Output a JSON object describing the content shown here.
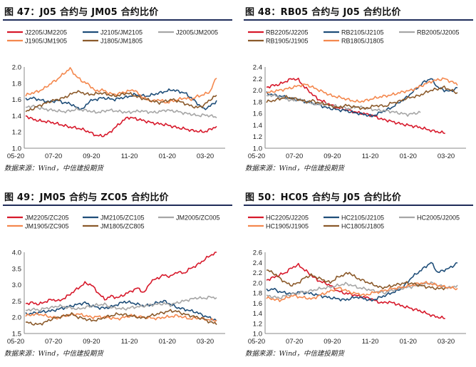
{
  "source_note": "数据来源：Wind，中信建投期货",
  "x_ticks": [
    "05-20",
    "07-20",
    "09-20",
    "11-20",
    "01-20",
    "03-20"
  ],
  "chart_data": [
    {
      "type": "line",
      "title": "图 47：J05 合约与 JM05 合约比价",
      "ylim": [
        1.0,
        2.0
      ],
      "yticks": [
        "1.0",
        "1.2",
        "1.4",
        "1.6",
        "1.8",
        "2.0"
      ],
      "series": [
        {
          "name": "J2205/JM2205",
          "color": "#d7192b",
          "values": [
            1.4,
            1.36,
            1.34,
            1.33,
            1.32,
            1.3,
            1.28,
            1.26,
            1.25,
            1.23,
            1.2,
            1.16,
            1.15,
            1.18,
            1.25,
            1.32,
            1.38,
            1.37,
            1.35,
            1.33,
            1.31,
            1.3,
            1.29,
            1.27,
            1.25,
            1.24,
            1.22,
            1.21,
            1.2,
            1.23,
            1.27
          ]
        },
        {
          "name": "J2105/JM2105",
          "color": "#1f4e79",
          "values": [
            1.6,
            1.62,
            1.6,
            1.58,
            1.57,
            1.59,
            1.56,
            1.55,
            1.5,
            1.48,
            1.58,
            1.6,
            1.62,
            1.61,
            1.6,
            1.62,
            1.63,
            1.66,
            1.65,
            1.64,
            1.66,
            1.68,
            1.7,
            1.72,
            1.7,
            1.68,
            1.62,
            1.55,
            1.48,
            1.52,
            1.58
          ]
        },
        {
          "name": "J2005/JM2005",
          "color": "#a6a6a6",
          "values": [
            1.5,
            1.52,
            1.5,
            1.48,
            1.47,
            1.46,
            1.45,
            1.46,
            1.48,
            1.47,
            1.46,
            1.44,
            1.45,
            1.47,
            1.46,
            1.45,
            1.44,
            1.45,
            1.46,
            1.45,
            1.44,
            1.45,
            1.47,
            1.46,
            1.45,
            1.43,
            1.42,
            1.4,
            1.41,
            1.4,
            1.38
          ]
        },
        {
          "name": "J1905/JM1905",
          "color": "#f4884e",
          "values": [
            1.65,
            1.68,
            1.7,
            1.74,
            1.8,
            1.85,
            1.92,
            1.98,
            1.88,
            1.82,
            1.78,
            1.7,
            1.72,
            1.68,
            1.66,
            1.68,
            1.7,
            1.72,
            1.65,
            1.6,
            1.58,
            1.6,
            1.56,
            1.58,
            1.6,
            1.62,
            1.6,
            1.64,
            1.66,
            1.7,
            1.88
          ]
        },
        {
          "name": "J1805/JM1805",
          "color": "#8b5a2b",
          "values": [
            1.45,
            1.48,
            1.52,
            1.55,
            1.58,
            1.6,
            1.62,
            1.66,
            1.7,
            1.68,
            1.66,
            1.67,
            1.68,
            1.66,
            1.64,
            1.66,
            1.68,
            1.65,
            1.62,
            1.6,
            1.58,
            1.56,
            1.58,
            1.6,
            1.58,
            1.55,
            1.52,
            1.5,
            1.53,
            1.6,
            1.65
          ]
        }
      ]
    },
    {
      "type": "line",
      "title": "图 48：RB05 合约与 J05 合约比价",
      "ylim": [
        1.0,
        2.4
      ],
      "yticks": [
        "1.0",
        "1.2",
        "1.4",
        "1.6",
        "1.8",
        "2.0",
        "2.2",
        "2.4"
      ],
      "series": [
        {
          "name": "RB2205/J2205",
          "color": "#d7192b",
          "values": [
            2.05,
            2.08,
            2.1,
            2.15,
            2.2,
            2.18,
            2.05,
            1.95,
            1.85,
            1.8,
            1.75,
            1.7,
            1.68,
            1.65,
            1.62,
            1.6,
            1.58,
            1.55,
            1.5,
            1.48,
            1.45,
            1.42,
            1.4,
            1.38,
            1.36,
            1.33,
            1.3,
            1.28,
            1.26
          ]
        },
        {
          "name": "RB2105/J2105",
          "color": "#1f4e79",
          "values": [
            1.95,
            1.92,
            1.9,
            1.88,
            1.85,
            1.83,
            1.8,
            1.78,
            1.75,
            1.7,
            1.68,
            1.66,
            1.65,
            1.62,
            1.6,
            1.58,
            1.55,
            1.6,
            1.65,
            1.7,
            1.78,
            1.85,
            1.95,
            2.05,
            2.15,
            2.2,
            2.05,
            2.0,
            1.98,
            2.05
          ]
        },
        {
          "name": "RB2005/J2005",
          "color": "#a6a6a6",
          "values": [
            1.9,
            1.92,
            1.88,
            1.85,
            1.82,
            1.84,
            1.8,
            1.78,
            1.75,
            1.76,
            1.74,
            1.72,
            1.7,
            1.68,
            1.72,
            1.7,
            1.68,
            1.66,
            1.65,
            1.64,
            1.62,
            1.6,
            1.58,
            1.6,
            1.62
          ]
        },
        {
          "name": "RB1905/J1905",
          "color": "#8b5a2b",
          "values": [
            1.8,
            1.82,
            1.85,
            1.88,
            1.86,
            1.84,
            1.8,
            1.82,
            1.78,
            1.76,
            1.72,
            1.7,
            1.74,
            1.72,
            1.7,
            1.68,
            1.72,
            1.74,
            1.72,
            1.78,
            1.8,
            1.85,
            1.88,
            1.9,
            1.95,
            2.0,
            2.02,
            2.05,
            2.0,
            1.95
          ]
        },
        {
          "name": "RB1805/J1805",
          "color": "#f4884e",
          "values": [
            1.95,
            1.98,
            2.0,
            2.02,
            2.05,
            2.08,
            2.1,
            2.05,
            2.0,
            1.95,
            1.9,
            1.88,
            1.85,
            1.82,
            1.8,
            1.82,
            1.85,
            1.88,
            1.9,
            1.92,
            1.95,
            1.98,
            2.0,
            2.05,
            2.1,
            2.15,
            2.18,
            2.2,
            2.15,
            2.1
          ]
        }
      ]
    },
    {
      "type": "line",
      "title": "图 49：JM05 合约与 ZC05 合约比价",
      "ylim": [
        1.5,
        4.0
      ],
      "yticks": [
        "1.5",
        "2.0",
        "2.5",
        "3.0",
        "3.5",
        "4.0"
      ],
      "series": [
        {
          "name": "JM2205/ZC205",
          "color": "#d7192b",
          "values": [
            2.42,
            2.45,
            2.4,
            2.48,
            2.55,
            2.5,
            2.6,
            2.75,
            2.9,
            3.05,
            3.0,
            2.75,
            2.55,
            2.65,
            2.6,
            2.7,
            2.8,
            2.9,
            2.75,
            3.1,
            3.2,
            3.3,
            3.25,
            3.4,
            3.35,
            3.5,
            3.6,
            3.75,
            3.9,
            4.0
          ]
        },
        {
          "name": "JM2105/ZC105",
          "color": "#1f4e79",
          "values": [
            2.1,
            2.12,
            2.15,
            2.18,
            2.2,
            2.25,
            2.3,
            2.35,
            2.4,
            2.45,
            2.35,
            2.3,
            2.28,
            2.32,
            2.4,
            2.48,
            2.45,
            2.4,
            2.35,
            2.38,
            2.45,
            2.5,
            2.4,
            2.3,
            2.25,
            2.2,
            2.15,
            2.05,
            1.98,
            1.9
          ]
        },
        {
          "name": "JM2005/ZC005",
          "color": "#a6a6a6",
          "values": [
            2.2,
            2.25,
            2.22,
            2.28,
            2.3,
            2.35,
            2.32,
            2.28,
            2.25,
            2.3,
            2.35,
            2.38,
            2.4,
            2.3,
            2.28,
            2.25,
            2.3,
            2.32,
            2.35,
            2.38,
            2.4,
            2.42,
            2.38,
            2.45,
            2.5,
            2.55,
            2.6,
            2.58,
            2.62,
            2.6
          ]
        },
        {
          "name": "JM1905/ZC905",
          "color": "#f4884e",
          "values": [
            2.05,
            2.08,
            2.1,
            2.05,
            2.0,
            1.98,
            2.05,
            2.08,
            2.1,
            2.05,
            2.0,
            2.02,
            2.0,
            1.98,
            1.95,
            2.0,
            2.05,
            2.02,
            2.0,
            1.98,
            1.96,
            2.0,
            2.02,
            2.05,
            2.0,
            1.95,
            1.98,
            1.95,
            1.92,
            1.9
          ]
        },
        {
          "name": "JM1805/ZC805",
          "color": "#8b5a2b",
          "values": [
            1.85,
            1.8,
            1.78,
            1.85,
            1.95,
            2.0,
            2.05,
            2.1,
            2.0,
            1.95,
            1.9,
            1.92,
            2.0,
            2.05,
            2.1,
            2.08,
            2.05,
            2.0,
            1.98,
            2.05,
            2.1,
            2.15,
            2.2,
            2.18,
            2.1,
            2.05,
            2.0,
            1.95,
            1.85,
            1.8
          ]
        }
      ]
    },
    {
      "type": "line",
      "title": "图 50：HC05 合约与 J05 合约比价",
      "ylim": [
        1.0,
        2.6
      ],
      "yticks": [
        "1.0",
        "1.2",
        "1.4",
        "1.6",
        "1.8",
        "2.0",
        "2.2",
        "2.4",
        "2.6"
      ],
      "series": [
        {
          "name": "HC2205/J2205",
          "color": "#d7192b",
          "values": [
            2.05,
            2.1,
            2.15,
            2.2,
            2.3,
            2.35,
            2.25,
            2.15,
            2.05,
            2.0,
            1.95,
            1.85,
            1.8,
            1.78,
            1.75,
            1.72,
            1.7,
            1.65,
            1.6,
            1.62,
            1.6,
            1.55,
            1.52,
            1.48,
            1.45,
            1.4,
            1.35,
            1.32,
            1.3
          ]
        },
        {
          "name": "HC2105/J2105",
          "color": "#1f4e79",
          "values": [
            1.85,
            1.88,
            1.82,
            1.8,
            1.78,
            1.82,
            1.8,
            1.78,
            1.75,
            1.72,
            1.7,
            1.68,
            1.66,
            1.7,
            1.72,
            1.68,
            1.65,
            1.7,
            1.75,
            1.8,
            1.85,
            1.95,
            2.1,
            2.2,
            2.3,
            2.4,
            2.2,
            2.25,
            2.3,
            2.4
          ]
        },
        {
          "name": "HC2005/J2005",
          "color": "#a6a6a6",
          "values": [
            1.75,
            1.72,
            1.7,
            1.75,
            1.78,
            1.8,
            1.82,
            1.85,
            1.88,
            1.9,
            1.92,
            1.95,
            1.98,
            1.95,
            1.9,
            1.88,
            1.85,
            1.82,
            1.8,
            1.85,
            1.88,
            1.9,
            1.92,
            1.95,
            1.98,
            2.0,
            1.95,
            1.92,
            1.9,
            1.95
          ]
        },
        {
          "name": "HC1905/J1905",
          "color": "#f4884e",
          "values": [
            1.7,
            1.68,
            1.65,
            1.7,
            1.75,
            1.72,
            1.7,
            1.68,
            1.75,
            1.8,
            1.85,
            1.9,
            1.85,
            1.8,
            1.78,
            1.75,
            1.8,
            1.82,
            1.85,
            1.88,
            1.9,
            1.92,
            1.95,
            1.98,
            2.0,
            1.98,
            1.95,
            1.92,
            1.9,
            1.88
          ]
        },
        {
          "name": "HC1805/J1805",
          "color": "#8b5a2b",
          "values": [
            2.25,
            2.2,
            2.1,
            2.0,
            1.95,
            2.0,
            2.1,
            2.15,
            2.1,
            2.05,
            2.0,
            2.1,
            2.15,
            2.2,
            2.1,
            2.05,
            2.0,
            1.95,
            1.9,
            1.92,
            1.95,
            1.98,
            2.0,
            1.98,
            1.95,
            1.92,
            1.9,
            1.88,
            1.9
          ]
        }
      ]
    }
  ]
}
